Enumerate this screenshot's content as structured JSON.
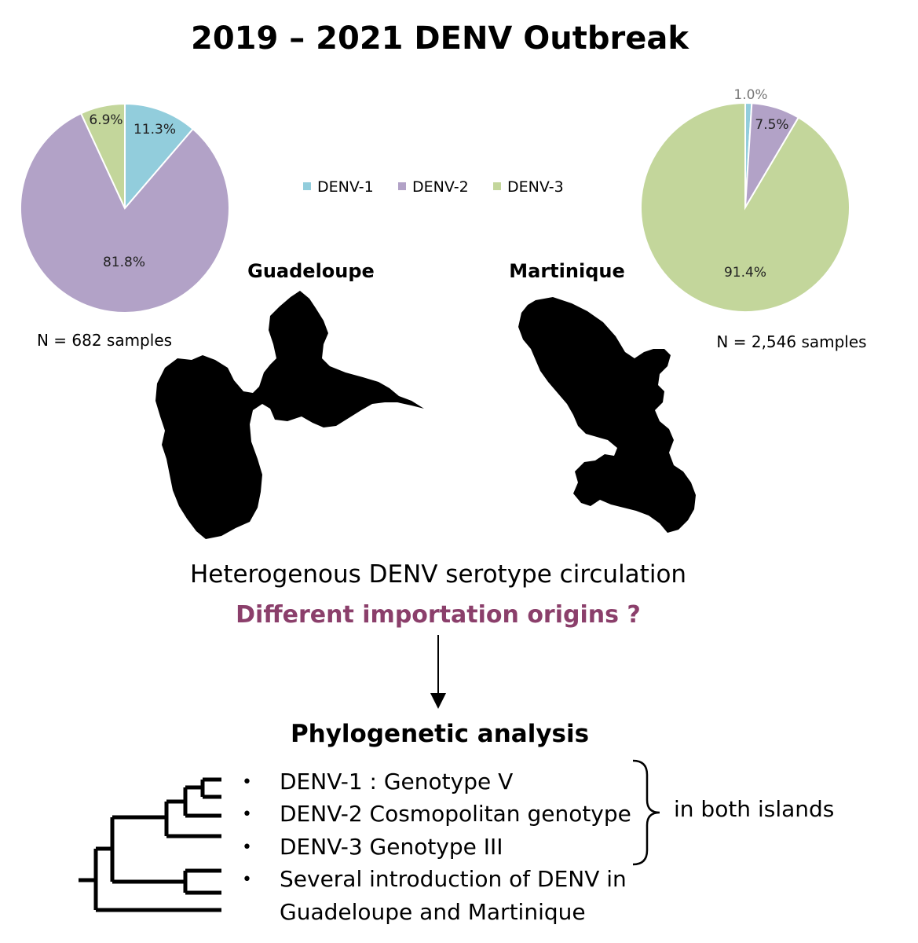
{
  "title": "2019 – 2021 DENV Outbreak",
  "colors": {
    "denv1": "#92cddc",
    "denv2": "#b2a2c7",
    "denv3": "#c3d69b",
    "accent": "#8b3f6b",
    "ink": "#000000"
  },
  "legend": [
    "DENV-1",
    "DENV-2",
    "DENV-3"
  ],
  "chart_data": [
    {
      "type": "pie",
      "island": "Guadeloupe",
      "categories": [
        "DENV-1",
        "DENV-2",
        "DENV-3"
      ],
      "values": [
        11.3,
        81.8,
        6.9
      ],
      "labels": [
        "11.3%",
        "81.8%",
        "6.9%"
      ],
      "note": "N = 682 samples"
    },
    {
      "type": "pie",
      "island": "Martinique",
      "categories": [
        "DENV-1",
        "DENV-2",
        "DENV-3"
      ],
      "values": [
        1.0,
        7.5,
        91.4
      ],
      "labels": [
        "1.0%",
        "7.5%",
        "91.4%"
      ],
      "note": "N = 2,546 samples"
    }
  ],
  "maps": {
    "guadeloupe": "Guadeloupe",
    "martinique": "Martinique"
  },
  "finding": "Heterogenous DENV serotype circulation",
  "question": "Different importation origins ?",
  "analysis_title": "Phylogenetic analysis",
  "bullets": [
    "DENV-1 : Genotype V",
    "DENV-2 Cosmopolitan genotype",
    "DENV-3 Genotype III",
    "Several introduction of DENV in",
    "Guadeloupe and Martinique"
  ],
  "bullet_glyph": "•",
  "bracket_note": "in both islands",
  "icons": [
    "guadeloupe-silhouette-icon",
    "martinique-silhouette-icon",
    "phylogenetic-tree-icon",
    "down-arrow-icon",
    "curly-brace-icon"
  ]
}
